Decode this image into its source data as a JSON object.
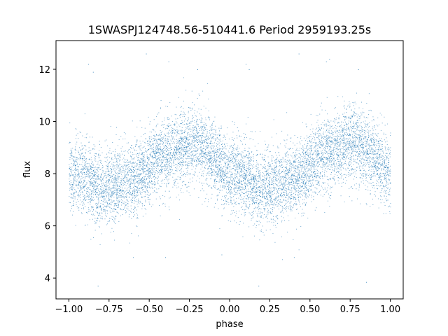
{
  "chart_data": {
    "type": "scatter",
    "title": "1SWASPJ124748.56-510441.6 Period 2959193.25s",
    "xlabel": "phase",
    "ylabel": "flux",
    "xlim": [
      -1.08,
      1.08
    ],
    "ylim": [
      3.2,
      13.1
    ],
    "xticks": [
      -1.0,
      -0.75,
      -0.5,
      -0.25,
      0.0,
      0.25,
      0.5,
      0.75,
      1.0
    ],
    "xtick_labels": [
      "−1.00",
      "−0.75",
      "−0.50",
      "−0.25",
      "0.00",
      "0.25",
      "0.50",
      "0.75",
      "1.00"
    ],
    "yticks": [
      4,
      6,
      8,
      10,
      12
    ],
    "ytick_labels": [
      "4",
      "6",
      "8",
      "10",
      "12"
    ],
    "grid": false,
    "point_color": "#1f77b4",
    "trend_profile": {
      "phase": [
        0.0,
        0.1,
        0.18,
        0.25,
        0.3,
        0.4,
        0.45,
        0.5,
        0.55,
        0.6,
        0.7,
        0.78,
        0.85,
        0.9,
        1.0
      ],
      "flux": [
        8.0,
        7.9,
        7.4,
        7.5,
        7.6,
        7.8,
        8.0,
        8.3,
        8.6,
        8.7,
        9.0,
        9.3,
        8.9,
        8.6,
        8.0
      ],
      "scatter": 0.7,
      "phase_range": [
        -1.0,
        1.0
      ]
    },
    "outlier_points": [
      {
        "x": -0.88,
        "y": 12.2
      },
      {
        "x": -0.85,
        "y": 11.9
      },
      {
        "x": -0.82,
        "y": 3.7
      },
      {
        "x": -0.6,
        "y": 4.8
      },
      {
        "x": -0.52,
        "y": 12.6
      },
      {
        "x": -0.38,
        "y": 12.3
      },
      {
        "x": -0.2,
        "y": 12.0
      },
      {
        "x": -0.05,
        "y": 4.9
      },
      {
        "x": 0.1,
        "y": 12.2
      },
      {
        "x": 0.12,
        "y": 12.0
      },
      {
        "x": 0.18,
        "y": 3.7
      },
      {
        "x": 0.4,
        "y": 4.8
      },
      {
        "x": 0.43,
        "y": 12.6
      },
      {
        "x": 0.6,
        "y": 12.3
      },
      {
        "x": 0.62,
        "y": 12.4
      },
      {
        "x": 0.8,
        "y": 12.0
      },
      {
        "x": 0.85,
        "y": 3.85
      },
      {
        "x": -0.4,
        "y": 4.8
      }
    ]
  }
}
